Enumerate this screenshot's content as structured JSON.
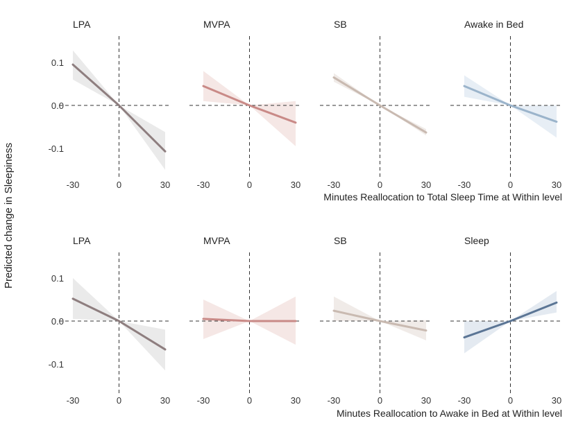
{
  "chart_data": {
    "type": "line",
    "ylabel": "Predicted change in Sleepiness",
    "xlim": [
      -30,
      30
    ],
    "ylim": [
      -0.16,
      0.16
    ],
    "x_ticks": [
      "-30",
      "0",
      "30"
    ],
    "y_ticks": [
      {
        "value": 0.1,
        "label": "0.1"
      },
      {
        "value": 0.0,
        "label": "0.0"
      },
      {
        "value": -0.1,
        "label": "-0.1"
      }
    ],
    "rows": [
      {
        "xlabel": "Minutes Reallocation to Total Sleep Time at Within level",
        "panels": [
          {
            "title": "LPA",
            "color": "#8e7e7f",
            "band": "#d9d9d9",
            "x": [
              -30,
              0,
              30
            ],
            "y": [
              0.095,
              0.0,
              -0.107
            ],
            "lower": [
              0.06,
              0.0,
              -0.15
            ],
            "upper": [
              0.128,
              0.0,
              -0.062
            ]
          },
          {
            "title": "MVPA",
            "color": "#c98a87",
            "band": "#ecd3d0",
            "x": [
              -30,
              0,
              30
            ],
            "y": [
              0.045,
              0.0,
              -0.04
            ],
            "lower": [
              0.01,
              0.0,
              -0.095
            ],
            "upper": [
              0.08,
              0.0,
              0.01
            ]
          },
          {
            "title": "SB",
            "color": "#c9bab1",
            "band": "#e4dad5",
            "x": [
              -30,
              0,
              30
            ],
            "y": [
              0.065,
              0.0,
              -0.063
            ],
            "lower": [
              0.055,
              0.0,
              -0.07
            ],
            "upper": [
              0.075,
              0.0,
              -0.055
            ]
          },
          {
            "title": "Awake in Bed",
            "color": "#9bb4cb",
            "band": "#d4e0ec",
            "x": [
              -30,
              0,
              30
            ],
            "y": [
              0.045,
              0.0,
              -0.038
            ],
            "lower": [
              0.02,
              0.0,
              -0.075
            ],
            "upper": [
              0.07,
              0.0,
              0.0
            ]
          }
        ]
      },
      {
        "xlabel": "Minutes Reallocation to Awake in Bed at Within level",
        "panels": [
          {
            "title": "LPA",
            "color": "#8e7e7f",
            "band": "#d9d9d9",
            "x": [
              -30,
              0,
              30
            ],
            "y": [
              0.052,
              0.0,
              -0.066
            ],
            "lower": [
              0.005,
              0.0,
              -0.115
            ],
            "upper": [
              0.1,
              0.0,
              -0.02
            ]
          },
          {
            "title": "MVPA",
            "color": "#c98a87",
            "band": "#ecd3d0",
            "x": [
              -30,
              0,
              30
            ],
            "y": [
              0.005,
              0.0,
              0.0
            ],
            "lower": [
              -0.042,
              0.0,
              -0.055
            ],
            "upper": [
              0.05,
              0.0,
              0.057
            ]
          },
          {
            "title": "SB",
            "color": "#c9bab1",
            "band": "#e4dad5",
            "x": [
              -30,
              0,
              30
            ],
            "y": [
              0.024,
              0.0,
              -0.022
            ],
            "lower": [
              0.0,
              0.0,
              -0.045
            ],
            "upper": [
              0.057,
              0.0,
              0.002
            ]
          },
          {
            "title": "Sleep",
            "color": "#5b7595",
            "band": "#cdd9e6",
            "x": [
              -30,
              0,
              30
            ],
            "y": [
              -0.038,
              0.0,
              0.043
            ],
            "lower": [
              -0.075,
              0.0,
              0.02
            ],
            "upper": [
              0.0,
              0.0,
              0.07
            ]
          }
        ]
      }
    ]
  }
}
